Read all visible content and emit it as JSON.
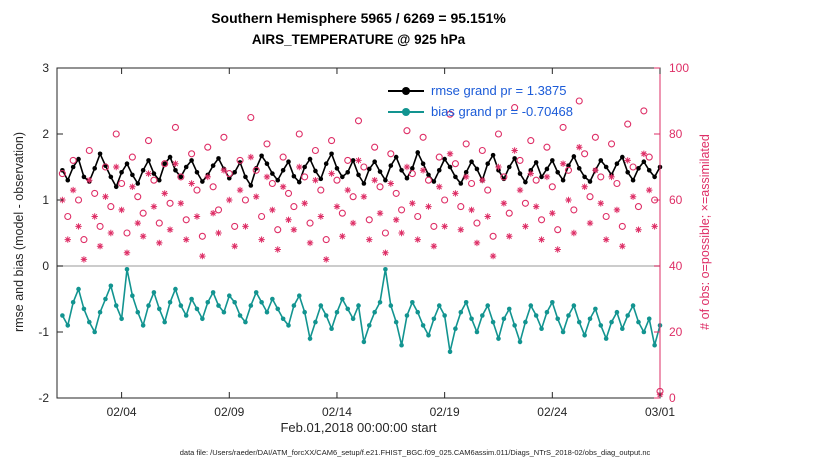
{
  "chart_data": {
    "type": "line",
    "title_line1": "Southern Hemisphere 5965 / 6269 = 95.151%",
    "title_line2": "AIRS_TEMPERATURE @ 925 hPa",
    "xlabel": "Feb.01,2018 00:00:00 start",
    "ylabel_left": "rmse and bias (model - observation)",
    "ylabel_right": "# of obs: o=possible; ×=assimilated",
    "footer": "data file: /Users/raeder/DAI/ATM_forcXX/CAM6_setup/f.e21.FHIST_BGC.f09_025.CAM6assim.011/Diags_NTrS_2018-02/obs_diag_output.nc",
    "rmse_grand": 1.3875,
    "bias_grand": -0.70468,
    "legend": [
      {
        "label": "rmse grand pr = 1.3875",
        "color": "#000000"
      },
      {
        "label": "bias grand pr = -0.70468",
        "color": "#129490"
      }
    ],
    "colors": {
      "rmse": "#000000",
      "bias": "#129490",
      "obs": "#de2e66",
      "legend_text": "#1b5bd8",
      "axis": "#262626",
      "zero_line": "#bcbcbc"
    },
    "x_unit": "6-hour bins starting Feb 01 2018 00:00",
    "xlim_days": [
      0,
      28
    ],
    "xticks": [
      {
        "day": 3,
        "label": "02/04"
      },
      {
        "day": 8,
        "label": "02/09"
      },
      {
        "day": 13,
        "label": "02/14"
      },
      {
        "day": 18,
        "label": "02/19"
      },
      {
        "day": 23,
        "label": "02/24"
      },
      {
        "day": 28,
        "label": "03/01"
      }
    ],
    "yleft": {
      "lim": [
        -2,
        3
      ],
      "ticks": [
        3,
        2,
        1,
        0,
        -1,
        -2
      ]
    },
    "yright": {
      "lim": [
        0,
        100
      ],
      "ticks": [
        100,
        80,
        60,
        40,
        20,
        0
      ]
    },
    "zero_line": {
      "y": 0
    },
    "series": [
      {
        "name": "rmse",
        "axis": "left",
        "color": "#000000",
        "marker": "filled-circle",
        "line": true,
        "values": [
          1.45,
          1.3,
          1.5,
          1.62,
          1.35,
          1.28,
          1.48,
          1.7,
          1.52,
          1.35,
          1.2,
          1.42,
          1.55,
          1.38,
          1.25,
          1.45,
          1.6,
          1.4,
          1.3,
          1.55,
          1.65,
          1.45,
          1.35,
          1.5,
          1.6,
          1.42,
          1.28,
          1.38,
          1.52,
          1.63,
          1.47,
          1.33,
          1.42,
          1.57,
          1.35,
          1.22,
          1.48,
          1.67,
          1.55,
          1.4,
          1.3,
          1.45,
          1.58,
          1.36,
          1.27,
          1.5,
          1.62,
          1.44,
          1.32,
          1.55,
          1.7,
          1.48,
          1.35,
          1.42,
          1.6,
          1.38,
          1.25,
          1.47,
          1.58,
          1.43,
          1.3,
          1.52,
          1.65,
          1.45,
          1.33,
          1.48,
          1.72,
          1.55,
          1.38,
          1.28,
          1.45,
          1.62,
          1.5,
          1.35,
          1.25,
          1.42,
          1.58,
          1.47,
          1.3,
          1.55,
          1.68,
          1.45,
          1.32,
          1.5,
          1.63,
          1.4,
          1.27,
          1.45,
          1.57,
          1.35,
          1.47,
          1.6,
          1.42,
          1.3,
          1.52,
          1.66,
          1.48,
          1.35,
          1.28,
          1.45,
          1.6,
          1.5,
          1.38,
          1.55,
          1.65,
          1.42,
          1.3,
          1.48,
          1.58,
          1.45,
          1.35,
          1.5
        ]
      },
      {
        "name": "bias",
        "axis": "left",
        "color": "#129490",
        "marker": "filled-circle",
        "line": true,
        "values": [
          -0.75,
          -0.9,
          -0.55,
          -0.35,
          -0.65,
          -0.85,
          -1.0,
          -0.7,
          -0.5,
          -0.3,
          -0.6,
          -0.8,
          -0.05,
          -0.45,
          -0.7,
          -0.9,
          -0.6,
          -0.4,
          -0.65,
          -0.85,
          -0.55,
          -0.35,
          -0.6,
          -0.75,
          -0.5,
          -0.65,
          -0.8,
          -0.55,
          -0.4,
          -0.6,
          -0.7,
          -0.45,
          -0.55,
          -0.75,
          -0.85,
          -0.6,
          -0.4,
          -0.55,
          -0.7,
          -0.5,
          -0.65,
          -0.8,
          -0.9,
          -0.6,
          -0.45,
          -0.7,
          -1.1,
          -0.85,
          -0.6,
          -0.75,
          -0.95,
          -0.7,
          -0.5,
          -0.65,
          -0.8,
          -0.6,
          -1.15,
          -0.9,
          -0.7,
          -0.55,
          -0.05,
          -0.6,
          -0.85,
          -1.2,
          -0.75,
          -0.55,
          -0.7,
          -0.9,
          -1.05,
          -0.8,
          -0.6,
          -0.75,
          -1.3,
          -0.95,
          -0.7,
          -0.55,
          -0.8,
          -1.0,
          -0.75,
          -0.6,
          -0.85,
          -1.1,
          -0.8,
          -0.65,
          -0.9,
          -1.15,
          -0.85,
          -0.6,
          -0.75,
          -0.95,
          -0.7,
          -0.55,
          -0.8,
          -1.0,
          -0.75,
          -0.6,
          -0.85,
          -1.05,
          -0.8,
          -0.65,
          -0.9,
          -1.1,
          -0.85,
          -0.7,
          -0.95,
          -0.75,
          -0.6,
          -0.85,
          -1.0,
          -0.8,
          -1.2,
          -0.9
        ]
      },
      {
        "name": "N_possible",
        "axis": "right",
        "color": "#de2e66",
        "marker": "open-circle",
        "line": false,
        "values": [
          68,
          55,
          72,
          60,
          48,
          75,
          62,
          52,
          70,
          58,
          80,
          65,
          50,
          73,
          61,
          56,
          78,
          66,
          53,
          71,
          59,
          82,
          67,
          54,
          74,
          63,
          49,
          76,
          64,
          57,
          79,
          68,
          52,
          72,
          60,
          85,
          69,
          55,
          77,
          65,
          51,
          73,
          62,
          58,
          80,
          67,
          53,
          75,
          63,
          48,
          78,
          66,
          56,
          72,
          61,
          84,
          70,
          54,
          76,
          64,
          50,
          74,
          62,
          57,
          81,
          68,
          55,
          79,
          66,
          52,
          73,
          60,
          86,
          71,
          58,
          77,
          65,
          53,
          75,
          63,
          49,
          80,
          67,
          56,
          88,
          72,
          59,
          78,
          66,
          54,
          76,
          64,
          51,
          82,
          69,
          57,
          90,
          74,
          61,
          79,
          67,
          55,
          77,
          65,
          52,
          83,
          70,
          58,
          87,
          73,
          60,
          2
        ]
      },
      {
        "name": "N_assimilated",
        "axis": "right",
        "color": "#de2e66",
        "marker": "asterisk",
        "line": false,
        "values": [
          60,
          48,
          63,
          52,
          42,
          66,
          55,
          46,
          61,
          50,
          70,
          57,
          44,
          64,
          53,
          49,
          68,
          58,
          47,
          62,
          51,
          71,
          59,
          48,
          65,
          55,
          43,
          67,
          56,
          50,
          69,
          60,
          46,
          63,
          52,
          73,
          61,
          48,
          67,
          57,
          45,
          64,
          54,
          51,
          70,
          59,
          47,
          66,
          55,
          42,
          68,
          58,
          49,
          63,
          53,
          72,
          61,
          48,
          66,
          56,
          44,
          65,
          54,
          50,
          70,
          59,
          48,
          69,
          58,
          46,
          64,
          52,
          74,
          62,
          51,
          67,
          57,
          47,
          66,
          55,
          43,
          70,
          59,
          49,
          75,
          63,
          52,
          68,
          58,
          48,
          67,
          56,
          45,
          71,
          60,
          50,
          76,
          64,
          53,
          69,
          59,
          48,
          67,
          57,
          46,
          72,
          61,
          51,
          74,
          63,
          52,
          1
        ]
      }
    ]
  }
}
